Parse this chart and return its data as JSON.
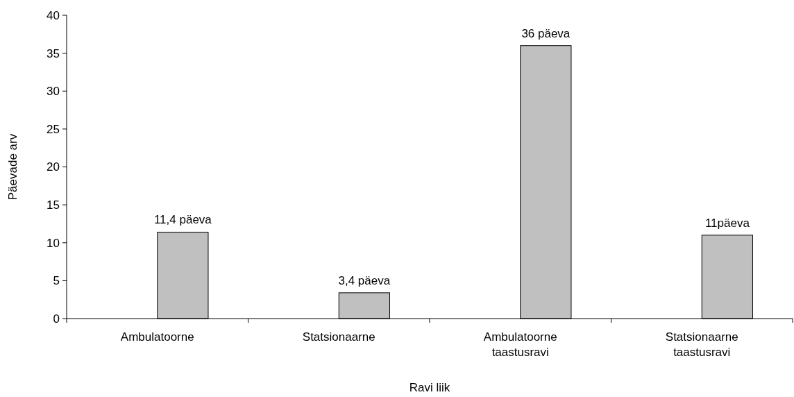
{
  "chart_data": {
    "type": "bar",
    "xlabel": "Ravi liik",
    "ylabel": "Päevade arv",
    "categories": [
      "Ambulatoorne",
      "Statsionaarne",
      "Ambulatoorne taastusravi",
      "Statsionaarne taastusravi"
    ],
    "values": [
      11.4,
      3.4,
      36,
      11
    ],
    "color": "#c0c0c0",
    "value_labels": [
      "11,4 päeva",
      "3,4 päeva",
      "36 päeva",
      "11päeva"
    ],
    "ylim": [
      0,
      40
    ],
    "yticks": [
      0,
      5,
      10,
      15,
      20,
      25,
      30,
      35,
      40
    ],
    "grid": false
  }
}
